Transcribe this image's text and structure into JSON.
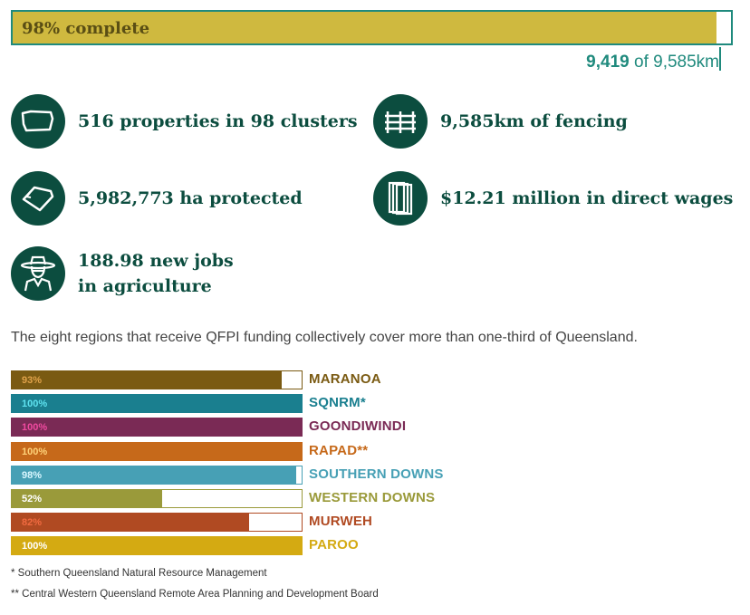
{
  "progress": {
    "label": "98% complete",
    "percent": 98,
    "done": "9,419",
    "of_text": " of 9,585km"
  },
  "stats": [
    {
      "icon": "property-map-icon",
      "text": "516 properties in 98 clusters"
    },
    {
      "icon": "fence-icon",
      "text": "9,585km of fencing"
    },
    {
      "icon": "protected-area-icon",
      "text": "5,982,773 ha protected"
    },
    {
      "icon": "money-notes-icon",
      "text": "$12.21 million in direct wages"
    },
    {
      "icon": "farmer-icon",
      "text": "188.98 new jobs in agriculture"
    }
  ],
  "intro": "The eight regions that receive QFPI funding collectively cover more than one-third of Queensland.",
  "chart_data": {
    "type": "bar",
    "orientation": "horizontal",
    "categories": [
      "MARANOA",
      "SQNRM*",
      "GOONDIWINDI",
      "RAPAD**",
      "SOUTHERN DOWNS",
      "WESTERN DOWNS",
      "MURWEH",
      "PAROO"
    ],
    "values": [
      93,
      100,
      100,
      100,
      98,
      52,
      82,
      100
    ],
    "value_labels": [
      "93%",
      "100%",
      "100%",
      "100%",
      "98%",
      "52%",
      "82%",
      "100%"
    ],
    "colors": [
      "#7a5a12",
      "#1a7f8f",
      "#7a2a55",
      "#c6691a",
      "#47a0b5",
      "#9a9a3a",
      "#b04a22",
      "#d4aa12"
    ],
    "label_colors": [
      "#e0a24a",
      "#5fe3f0",
      "#f04aa0",
      "#ffd37a",
      "#d9f7ff",
      "#ffffff",
      "#f06a40",
      "#ffffff"
    ],
    "xlim": [
      0,
      100
    ]
  },
  "footnotes": [
    "* Southern Queensland Natural Resource Management",
    "** Central Western Queensland Remote Area Planning and Development Board"
  ]
}
